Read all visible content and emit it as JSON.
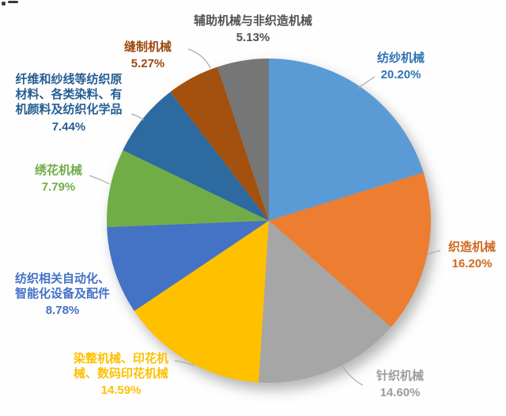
{
  "chart_data": {
    "type": "pie",
    "title": "",
    "legend": "none",
    "data_labels": "outside, category name + percent, with leader lines",
    "start_angle_deg": 0,
    "direction": "clockwise",
    "unit": "%",
    "background": "#FEFEFE",
    "leader_line_color": "#ABABAB",
    "slices": [
      {
        "name": "纺纱机械",
        "lines": "纺纱机械",
        "value": 20.2,
        "pct": "20.20%",
        "color": "#5B9BD5",
        "text_color": "#2E74B5"
      },
      {
        "name": "织造机械",
        "lines": "织造机械",
        "value": 16.2,
        "pct": "16.20%",
        "color": "#ED7D31",
        "text_color": "#D2671E"
      },
      {
        "name": "针织机械",
        "lines": "针织机械",
        "value": 14.6,
        "pct": "14.60%",
        "color": "#A6A6A6",
        "text_color": "#9C9C9C"
      },
      {
        "name": "染整机械、印花机械、数码印花机械",
        "lines": "染整机械、印花机\n械、数码印花机械",
        "value": 14.59,
        "pct": "14.59%",
        "color": "#FFC000",
        "text_color": "#FFC000"
      },
      {
        "name": "纺织相关自动化、智能化设备及配件",
        "lines": "纺织相关自动化、\n智能化设备及配件",
        "value": 8.78,
        "pct": "8.78%",
        "color": "#4472C4",
        "text_color": "#4472C4"
      },
      {
        "name": "绣花机械",
        "lines": "绣花机械",
        "value": 7.79,
        "pct": "7.79%",
        "color": "#70AD47",
        "text_color": "#70AD47"
      },
      {
        "name": "纤维和纱线等纺织原材料、各类染料、有机颜料及纺织化学品",
        "lines": "纤维和纱线等纺织原\n材料、各类染料、有\n机颜料及纺织化学品",
        "value": 7.44,
        "pct": "7.44%",
        "color": "#2C6AA0",
        "text_color": "#255E91"
      },
      {
        "name": "缝制机械",
        "lines": "缝制机械",
        "value": 5.27,
        "pct": "5.27%",
        "color": "#A4500E",
        "text_color": "#9E480E"
      },
      {
        "name": "辅助机械与非织造机械",
        "lines": "辅助机械与非织造机械",
        "value": 5.13,
        "pct": "5.13%",
        "color": "#767676",
        "text_color": "#515155"
      }
    ]
  }
}
